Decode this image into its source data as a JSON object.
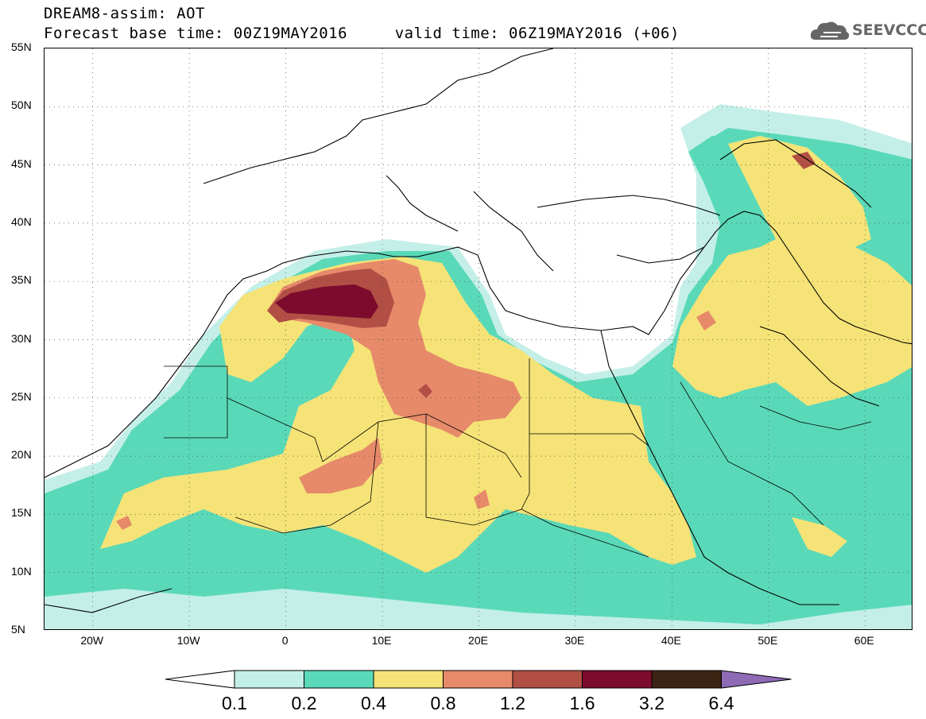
{
  "title": {
    "line1": "DREAM8-assim: AOT",
    "line2": "Forecast base time: 00Z19MAY2016     valid time: 06Z19MAY2016 (+06)"
  },
  "logo": {
    "text": "SEEVCCC",
    "icon": "cloud-icon"
  },
  "map": {
    "lat_labels": [
      "55N",
      "50N",
      "45N",
      "40N",
      "35N",
      "30N",
      "25N",
      "20N",
      "15N",
      "10N",
      "5N"
    ],
    "lon_labels": [
      "20W",
      "10W",
      "0",
      "10E",
      "20E",
      "30E",
      "40E",
      "50E",
      "60E"
    ],
    "extent": {
      "lon_min": -25,
      "lon_max": 65,
      "lat_min": 5,
      "lat_max": 55
    }
  },
  "colorbar": {
    "labels": [
      "0.1",
      "0.2",
      "0.4",
      "0.8",
      "1.2",
      "1.6",
      "3.2",
      "6.4"
    ],
    "colors": [
      "#ffffff",
      "#c4efe8",
      "#5ad9b8",
      "#f6e377",
      "#e68a6a",
      "#b24f45",
      "#7d0b2d",
      "#3b2413",
      "#8f6ab5"
    ]
  },
  "colors": {
    "level_0_1": "#c4efe8",
    "level_0_2": "#5ad9b8",
    "level_0_4": "#f6e377",
    "level_0_8": "#e68a6a",
    "level_1_2": "#b24f45",
    "level_1_6": "#7d0b2d"
  }
}
